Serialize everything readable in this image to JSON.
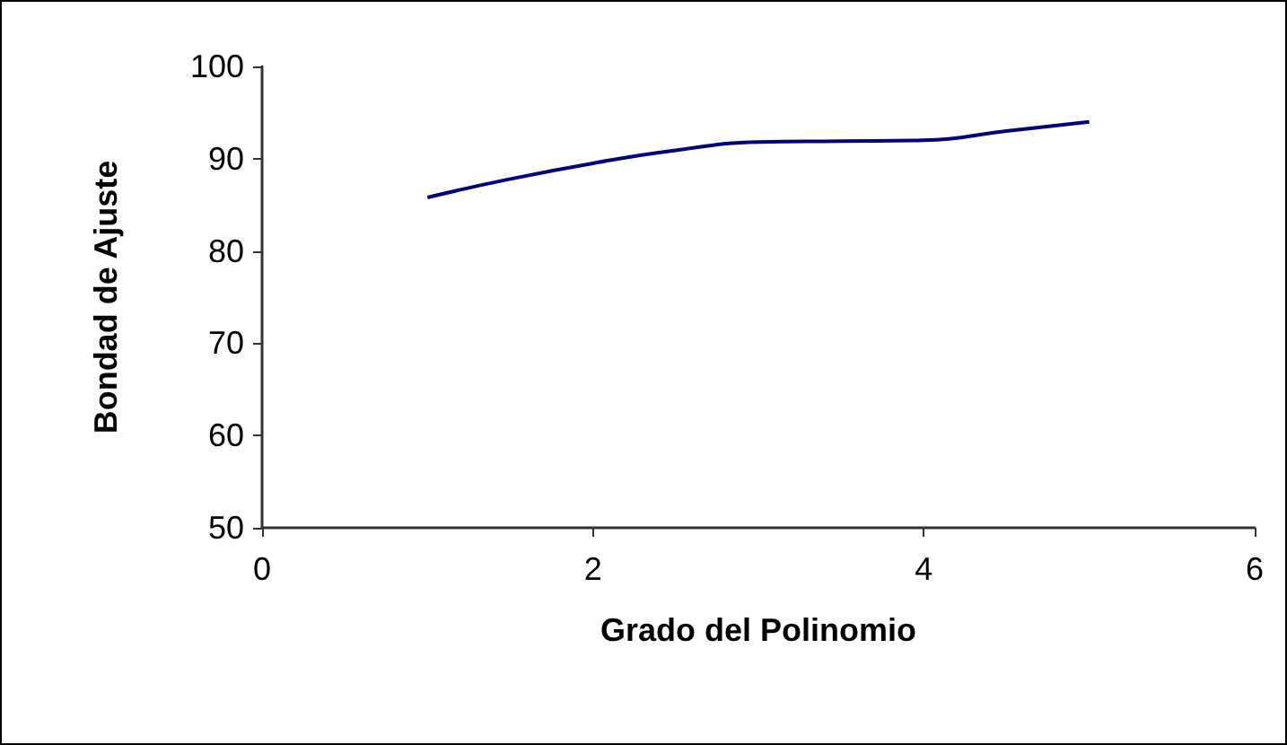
{
  "chart_data": {
    "type": "line",
    "xlabel": "Grado del Polinomio",
    "ylabel": "Bondad de Ajuste",
    "x": [
      1,
      1.5,
      2,
      2.5,
      3,
      3.5,
      4,
      4.5,
      5
    ],
    "series": [
      {
        "color": "#000080",
        "values": [
          85.8,
          87.8,
          89.5,
          90.9,
          91.8,
          91.9,
          92.0,
          93.0,
          94.0
        ]
      }
    ],
    "xlim": [
      0,
      6
    ],
    "xticks": [
      0,
      2,
      4,
      6
    ],
    "ylim": [
      50,
      100
    ],
    "yticks": [
      50,
      60,
      70,
      80,
      90,
      100
    ],
    "grid": false,
    "marker": "none",
    "line_style": "solid"
  }
}
